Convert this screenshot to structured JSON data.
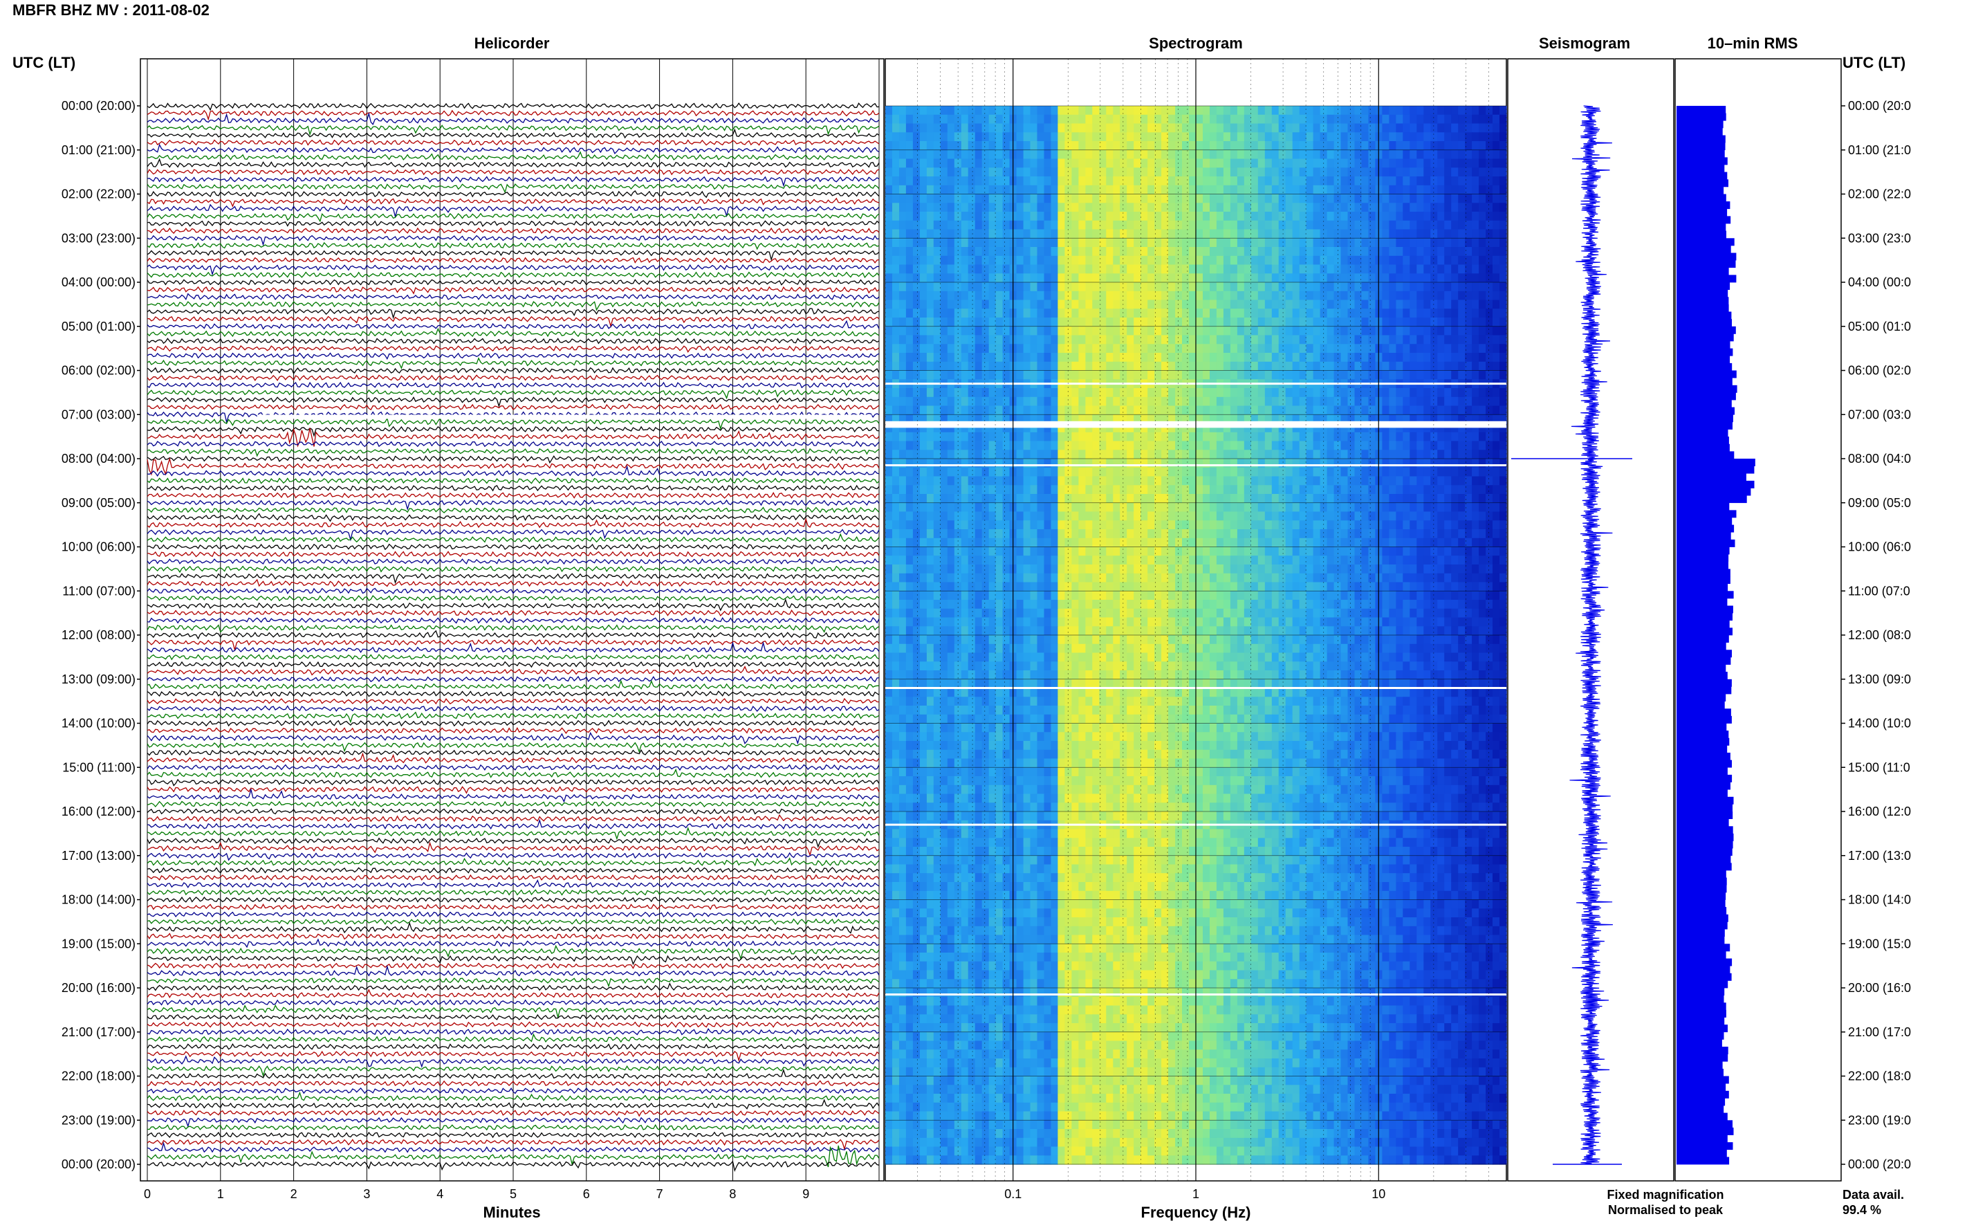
{
  "title": "MBFR BHZ MV : 2011-08-02",
  "left_axis_label": "UTC (LT)",
  "right_axis_label": "UTC (LT)",
  "panel_titles": {
    "helicorder": "Helicorder",
    "spectrogram": "Spectrogram",
    "seismogram": "Seismogram",
    "rms": "10–min RMS"
  },
  "hour_labels": [
    "00:00 (20:00)",
    "01:00 (21:00)",
    "02:00 (22:00)",
    "03:00 (23:00)",
    "04:00 (00:00)",
    "05:00 (01:00)",
    "06:00 (02:00)",
    "07:00 (03:00)",
    "08:00 (04:00)",
    "09:00 (05:00)",
    "10:00 (06:00)",
    "11:00 (07:00)",
    "12:00 (08:00)",
    "13:00 (09:00)",
    "14:00 (10:00)",
    "15:00 (11:00)",
    "16:00 (12:00)",
    "17:00 (13:00)",
    "18:00 (14:00)",
    "19:00 (15:00)",
    "20:00 (16:00)",
    "21:00 (17:00)",
    "22:00 (18:00)",
    "23:00 (19:00)",
    "00:00 (20:00)"
  ],
  "right_hour_labels": [
    "00:00 (20:0",
    "01:00 (21:0",
    "02:00 (22:0",
    "03:00 (23:0",
    "04:00 (00:0",
    "05:00 (01:0",
    "06:00 (02:0",
    "07:00 (03:0",
    "08:00 (04:0",
    "09:00 (05:0",
    "10:00 (06:0",
    "11:00 (07:0",
    "12:00 (08:0",
    "13:00 (09:0",
    "14:00 (10:0",
    "15:00 (11:0",
    "16:00 (12:0",
    "17:00 (13:0",
    "18:00 (14:0",
    "19:00 (15:0",
    "20:00 (16:0",
    "21:00 (17:0",
    "22:00 (18:0",
    "23:00 (19:0",
    "00:00 (20:0"
  ],
  "helicorder_x_ticks": [
    "0",
    "1",
    "2",
    "3",
    "4",
    "5",
    "6",
    "7",
    "8",
    "9"
  ],
  "helicorder_xlabel": "Minutes",
  "spectrogram_x_ticks": [
    "0.1",
    "1",
    "10"
  ],
  "spectrogram_xlabel": "Frequency (Hz)",
  "legend_fixed": "Fixed magnification",
  "legend_normalised": "Normalised to peak",
  "data_avail_label": "Data avail.",
  "data_avail_value": "99.4 %",
  "colors": {
    "trace_cycle": [
      "#000000",
      "#b00000",
      "#00008c",
      "#007a00"
    ],
    "seismogram": "#0000ee",
    "rms": "#0000ee",
    "legend_fixed": "#0000ff",
    "legend_normalised": "#ff0000",
    "spectro_low": "#0000a0",
    "spectro_mid": "#30a0ff",
    "spectro_high": "#f0f040"
  },
  "chart_data": [
    {
      "type": "line",
      "name": "helicorder",
      "title": "Helicorder",
      "xlabel": "Minutes",
      "xlim": [
        0,
        10
      ],
      "x_ticks": [
        0,
        1,
        2,
        3,
        4,
        5,
        6,
        7,
        8,
        9
      ],
      "rows_per_hour": 6,
      "row_minutes": 10,
      "hours": 24,
      "gaps_hours": [
        7.05,
        7.15
      ],
      "events": [
        {
          "hour": 7.55,
          "minute": 2.1
        },
        {
          "hour": 8.1,
          "minute": 0.1
        },
        {
          "hour": 23.9,
          "minute": 9.5
        }
      ]
    },
    {
      "type": "heatmap",
      "name": "spectrogram",
      "title": "Spectrogram",
      "xlabel": "Frequency (Hz)",
      "xscale": "log",
      "xlim": [
        0.02,
        50
      ],
      "x_ticks": [
        0.1,
        1,
        10
      ],
      "ylim_hours": [
        0,
        24
      ],
      "peak_band_hz": [
        0.2,
        0.6
      ],
      "gap_hours": [
        7.15,
        7.3
      ],
      "thin_gaps_hours": [
        6.3,
        8.15,
        13.2,
        16.3,
        20.15
      ]
    },
    {
      "type": "line",
      "name": "seismogram",
      "title": "Seismogram",
      "ylim_hours": [
        0,
        24
      ],
      "spike_hours": [
        8.0
      ]
    },
    {
      "type": "bar",
      "name": "rms",
      "title": "10–min RMS",
      "orientation": "horizontal",
      "hours": [
        0,
        1,
        2,
        3,
        4,
        5,
        6,
        7,
        8,
        9,
        10,
        11,
        12,
        13,
        14,
        15,
        16,
        17,
        18,
        19,
        20,
        21,
        22,
        23
      ],
      "relative_values": [
        0.78,
        0.8,
        0.85,
        0.9,
        0.86,
        0.92,
        0.95,
        0.88,
        1.2,
        0.9,
        0.84,
        0.86,
        0.85,
        0.83,
        0.85,
        0.88,
        0.9,
        0.84,
        0.82,
        0.85,
        0.8,
        0.78,
        0.8,
        0.86
      ]
    }
  ]
}
